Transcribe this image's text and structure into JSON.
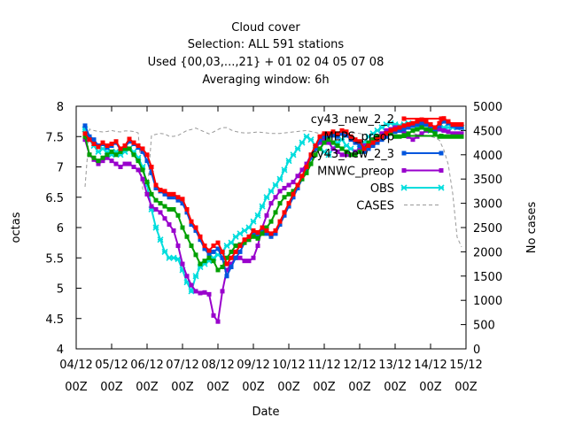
{
  "chart_data": {
    "type": "line",
    "title_lines": [
      "Cloud cover",
      "Selection: ALL    591 stations",
      "Used {00,03,...,21} + 01 02 04 05 07 08",
      "Averaging window:  6h"
    ],
    "xlabel": "Date",
    "ylabel": "octas",
    "y2label": "No cases",
    "xlim": [
      4,
      15
    ],
    "ylim": [
      4,
      8
    ],
    "y2lim": [
      0,
      5000
    ],
    "xticks": [
      {
        "v": 4,
        "l1": "04/12",
        "l2": "00Z"
      },
      {
        "v": 5,
        "l1": "05/12",
        "l2": "00Z"
      },
      {
        "v": 6,
        "l1": "06/12",
        "l2": "00Z"
      },
      {
        "v": 7,
        "l1": "07/12",
        "l2": "00Z"
      },
      {
        "v": 8,
        "l1": "08/12",
        "l2": "00Z"
      },
      {
        "v": 9,
        "l1": "09/12",
        "l2": "00Z"
      },
      {
        "v": 10,
        "l1": "10/12",
        "l2": "00Z"
      },
      {
        "v": 11,
        "l1": "11/12",
        "l2": "00Z"
      },
      {
        "v": 12,
        "l1": "12/12",
        "l2": "00Z"
      },
      {
        "v": 13,
        "l1": "13/12",
        "l2": "00Z"
      },
      {
        "v": 14,
        "l1": "14/12",
        "l2": "00Z"
      },
      {
        "v": 15,
        "l1": "15/12",
        "l2": "00Z"
      }
    ],
    "yticks": [
      "4",
      "4.5",
      "5",
      "5.5",
      "6",
      "6.5",
      "7",
      "7.5",
      "8"
    ],
    "y2ticks": [
      "0",
      "500",
      "1000",
      "1500",
      "2000",
      "2500",
      "3000",
      "3500",
      "4000",
      "4500",
      "5000"
    ],
    "x": [
      4.25,
      4.375,
      4.5,
      4.625,
      4.75,
      4.875,
      5.0,
      5.125,
      5.25,
      5.375,
      5.5,
      5.625,
      5.75,
      5.875,
      6.0,
      6.125,
      6.25,
      6.375,
      6.5,
      6.625,
      6.75,
      6.875,
      7.0,
      7.125,
      7.25,
      7.375,
      7.5,
      7.625,
      7.75,
      7.875,
      8.0,
      8.125,
      8.25,
      8.375,
      8.5,
      8.625,
      8.75,
      8.875,
      9.0,
      9.125,
      9.25,
      9.375,
      9.5,
      9.625,
      9.75,
      9.875,
      10.0,
      10.125,
      10.25,
      10.375,
      10.5,
      10.625,
      10.75,
      10.875,
      11.0,
      11.125,
      11.25,
      11.375,
      11.5,
      11.625,
      11.75,
      11.875,
      12.0,
      12.125,
      12.25,
      12.375,
      12.5,
      12.625,
      12.75,
      12.875,
      13.0,
      13.125,
      13.25,
      13.375,
      13.5,
      13.625,
      13.75,
      13.875,
      14.0,
      14.125,
      14.25,
      14.375,
      14.5,
      14.625,
      14.75,
      14.875
    ],
    "series": [
      {
        "name": "cy43_new_2_2",
        "color": "#ff0000",
        "marker": "square",
        "values": [
          7.55,
          7.45,
          7.38,
          7.33,
          7.4,
          7.35,
          7.38,
          7.42,
          7.3,
          7.35,
          7.46,
          7.4,
          7.35,
          7.3,
          7.2,
          7.0,
          6.7,
          6.62,
          6.6,
          6.55,
          6.55,
          6.5,
          6.47,
          6.3,
          6.1,
          6.0,
          5.85,
          5.7,
          5.62,
          5.7,
          5.75,
          5.6,
          5.4,
          5.5,
          5.6,
          5.7,
          5.8,
          5.85,
          5.95,
          5.92,
          6.0,
          5.95,
          5.9,
          5.95,
          6.1,
          6.25,
          6.4,
          6.55,
          6.7,
          6.85,
          7.0,
          7.2,
          7.35,
          7.5,
          7.55,
          7.55,
          7.58,
          7.55,
          7.6,
          7.58,
          7.5,
          7.45,
          7.42,
          7.3,
          7.35,
          7.4,
          7.45,
          7.5,
          7.55,
          7.6,
          7.62,
          7.65,
          7.68,
          7.7,
          7.72,
          7.75,
          7.78,
          7.75,
          7.7,
          7.65,
          7.72,
          7.8,
          7.75,
          7.7,
          7.7,
          7.7
        ]
      },
      {
        "name": "MEPS_preop",
        "color": "#00a000",
        "marker": "square",
        "values": [
          7.5,
          7.2,
          7.15,
          7.1,
          7.15,
          7.2,
          7.25,
          7.2,
          7.25,
          7.3,
          7.3,
          7.2,
          7.1,
          6.95,
          6.75,
          6.55,
          6.45,
          6.4,
          6.35,
          6.3,
          6.3,
          6.2,
          6.0,
          5.85,
          5.7,
          5.55,
          5.4,
          5.45,
          5.5,
          5.45,
          5.3,
          5.35,
          5.5,
          5.6,
          5.7,
          5.72,
          5.75,
          5.8,
          5.85,
          5.82,
          5.9,
          6.0,
          6.1,
          6.25,
          6.4,
          6.5,
          6.55,
          6.6,
          6.7,
          6.8,
          6.9,
          7.05,
          7.2,
          7.3,
          7.4,
          7.45,
          7.4,
          7.35,
          7.3,
          7.25,
          7.2,
          7.2,
          7.25,
          7.3,
          7.4,
          7.45,
          7.5,
          7.5,
          7.55,
          7.55,
          7.5,
          7.5,
          7.52,
          7.55,
          7.6,
          7.62,
          7.65,
          7.62,
          7.6,
          7.55,
          7.5,
          7.5,
          7.5,
          7.5,
          7.5,
          7.5
        ]
      },
      {
        "name": "cy43_new_2_3",
        "color": "#0055dd",
        "marker": "square",
        "values": [
          7.68,
          7.5,
          7.45,
          7.35,
          7.38,
          7.32,
          7.35,
          7.4,
          7.28,
          7.32,
          7.42,
          7.38,
          7.32,
          7.25,
          7.1,
          6.9,
          6.65,
          6.6,
          6.55,
          6.5,
          6.5,
          6.45,
          6.4,
          6.25,
          6.05,
          5.95,
          5.8,
          5.65,
          5.55,
          5.6,
          5.65,
          5.5,
          5.2,
          5.35,
          5.5,
          5.6,
          5.75,
          5.8,
          5.9,
          5.88,
          5.95,
          5.9,
          5.85,
          5.9,
          6.05,
          6.2,
          6.35,
          6.5,
          6.65,
          6.8,
          6.95,
          7.15,
          7.3,
          7.45,
          7.5,
          7.5,
          7.52,
          7.5,
          7.55,
          7.52,
          7.45,
          7.4,
          7.35,
          7.25,
          7.3,
          7.35,
          7.4,
          7.45,
          7.5,
          7.55,
          7.58,
          7.6,
          7.62,
          7.65,
          7.68,
          7.7,
          7.72,
          7.7,
          7.65,
          7.6,
          7.68,
          7.75,
          7.72,
          7.68,
          7.65,
          7.65
        ]
      },
      {
        "name": "MNWC_preop",
        "color": "#9900cc",
        "marker": "square",
        "values": [
          7.45,
          7.2,
          7.12,
          7.05,
          7.1,
          7.15,
          7.1,
          7.05,
          7.0,
          7.05,
          7.05,
          7.0,
          6.95,
          6.8,
          6.55,
          6.35,
          6.3,
          6.25,
          6.15,
          6.05,
          5.95,
          5.7,
          5.4,
          5.2,
          5.05,
          4.95,
          4.92,
          4.93,
          4.9,
          4.55,
          4.45,
          4.95,
          5.3,
          5.4,
          5.5,
          5.5,
          5.45,
          5.45,
          5.5,
          5.7,
          6.0,
          6.2,
          6.4,
          6.5,
          6.6,
          6.65,
          6.7,
          6.75,
          6.85,
          6.95,
          7.05,
          7.2,
          7.3,
          7.4,
          7.45,
          7.4,
          7.3,
          7.25,
          7.2,
          7.2,
          7.2,
          7.25,
          7.3,
          7.35,
          7.4,
          7.45,
          7.5,
          7.55,
          7.6,
          7.62,
          7.65,
          7.6,
          7.55,
          7.5,
          7.45,
          7.5,
          7.55,
          7.6,
          7.62,
          7.65,
          7.62,
          7.6,
          7.58,
          7.55,
          7.55,
          7.55
        ]
      },
      {
        "name": "OBS",
        "color": "#00dddd",
        "marker": "x",
        "values": [
          7.62,
          7.45,
          7.35,
          7.25,
          7.3,
          7.25,
          7.2,
          7.25,
          7.2,
          7.25,
          7.3,
          7.25,
          7.15,
          7.0,
          6.7,
          6.3,
          6.0,
          5.8,
          5.6,
          5.5,
          5.5,
          5.48,
          5.3,
          5.1,
          4.95,
          5.2,
          5.35,
          5.4,
          5.45,
          5.5,
          5.55,
          5.6,
          5.7,
          5.75,
          5.85,
          5.9,
          5.95,
          6.0,
          6.1,
          6.2,
          6.35,
          6.5,
          6.6,
          6.7,
          6.8,
          6.95,
          7.1,
          7.2,
          7.3,
          7.4,
          7.5,
          7.45,
          7.35,
          7.3,
          7.25,
          7.2,
          7.3,
          7.4,
          7.45,
          7.35,
          7.3,
          7.25,
          7.3,
          7.4,
          7.5,
          7.55,
          7.6,
          7.65,
          7.7,
          7.72,
          7.7,
          7.68,
          7.7,
          7.72,
          7.7,
          7.68,
          7.65,
          7.6,
          7.6,
          7.6,
          7.62,
          7.65,
          7.65,
          7.65,
          7.65,
          7.65
        ]
      },
      {
        "name": "CASES",
        "color": "#999999",
        "marker": "none",
        "axis": "y2",
        "values": [
          3340,
          4530,
          4500,
          4480,
          4470,
          4480,
          4500,
          4480,
          4470,
          4490,
          4490,
          4480,
          4450,
          3300,
          3150,
          4400,
          4420,
          4440,
          4430,
          4380,
          4380,
          4400,
          4450,
          4500,
          4520,
          4550,
          4510,
          4470,
          4430,
          4470,
          4520,
          4560,
          4560,
          4510,
          4480,
          4460,
          4450,
          4450,
          4460,
          4470,
          4460,
          4450,
          4440,
          4440,
          4440,
          4450,
          4460,
          4470,
          4480,
          4490,
          4500,
          4480,
          4460,
          4440,
          4430,
          4420,
          4410,
          4420,
          4430,
          4440,
          4450,
          4450,
          4440,
          4420,
          4400,
          4410,
          4420,
          4430,
          4450,
          4460,
          4470,
          4470,
          4460,
          4450,
          4440,
          4420,
          4410,
          4400,
          4380,
          4350,
          4300,
          4100,
          3800,
          3200,
          2300,
          2100
        ]
      }
    ]
  }
}
